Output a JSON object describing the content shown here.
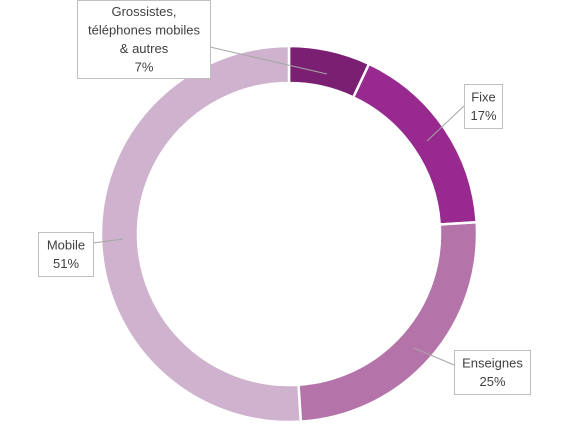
{
  "chart_data": {
    "type": "pie",
    "donut": true,
    "title": "",
    "legend": "none",
    "colors": {
      "background": "#ffffff",
      "slice_border": "#ffffff",
      "callout_border": "#bfbfbf",
      "callout_text": "#404040",
      "leader_line": "#a6a6a6"
    },
    "slices": [
      {
        "label": "Grossistes, téléphones mobiles & autres",
        "label_lines": [
          "Grossistes,",
          "téléphones mobiles",
          "& autres"
        ],
        "value": 7,
        "value_label": "7%",
        "color": "#7b1f73"
      },
      {
        "label": "Fixe",
        "label_lines": [
          "Fixe"
        ],
        "value": 17,
        "value_label": "17%",
        "color": "#97298f"
      },
      {
        "label": "Enseignes",
        "label_lines": [
          "Enseignes"
        ],
        "value": 25,
        "value_label": "25%",
        "color": "#b474a9"
      },
      {
        "label": "Mobile",
        "label_lines": [
          "Mobile"
        ],
        "value": 51,
        "value_label": "51%",
        "color": "#cfb2cd"
      }
    ]
  }
}
